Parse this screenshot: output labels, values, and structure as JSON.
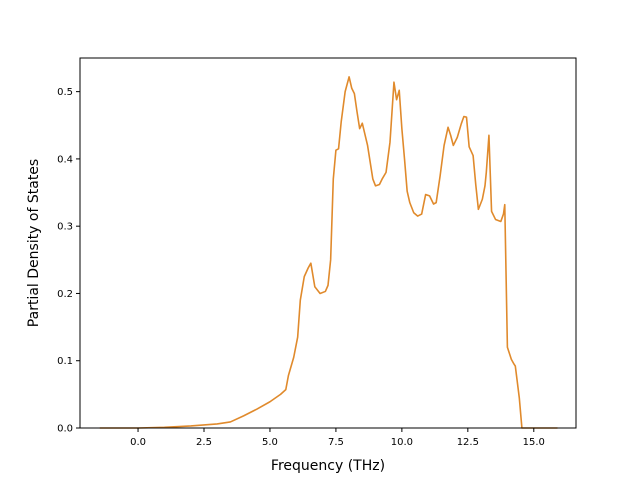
{
  "chart_data": {
    "type": "line",
    "title": "",
    "xlabel": "Frequency (THz)",
    "ylabel": "Partial Density of States",
    "xlim": [
      -2.2,
      16.6
    ],
    "ylim": [
      0.0,
      0.55
    ],
    "xticks": [
      0.0,
      2.5,
      5.0,
      7.5,
      10.0,
      12.5,
      15.0
    ],
    "xtick_labels": [
      "0.0",
      "2.5",
      "5.0",
      "7.5",
      "10.0",
      "12.5",
      "15.0"
    ],
    "yticks": [
      0.0,
      0.1,
      0.2,
      0.3,
      0.4,
      0.5
    ],
    "ytick_labels": [
      "0.0",
      "0.1",
      "0.2",
      "0.3",
      "0.4",
      "0.5"
    ],
    "grid": false,
    "legend": "none",
    "line_color": "#e08a2c",
    "series": [
      {
        "x": [
          -1.45,
          0.0,
          1.0,
          2.0,
          3.0,
          3.5,
          4.0,
          4.5,
          5.0,
          5.4,
          5.6,
          5.7,
          5.9,
          6.05,
          6.15,
          6.3,
          6.45,
          6.55,
          6.7,
          6.9,
          7.1,
          7.2,
          7.3,
          7.35,
          7.4,
          7.5,
          7.6,
          7.7,
          7.85,
          8.0,
          8.1,
          8.2,
          8.3,
          8.4,
          8.5,
          8.7,
          8.9,
          9.0,
          9.15,
          9.25,
          9.4,
          9.55,
          9.7,
          9.8,
          9.9,
          10.0,
          10.1,
          10.2,
          10.3,
          10.45,
          10.6,
          10.75,
          10.9,
          11.05,
          11.2,
          11.3,
          11.45,
          11.6,
          11.75,
          11.85,
          11.95,
          12.1,
          12.25,
          12.35,
          12.45,
          12.55,
          12.7,
          12.8,
          12.9,
          13.05,
          13.15,
          13.2,
          13.3,
          13.4,
          13.55,
          13.75,
          13.85,
          13.9,
          14.0,
          14.15,
          14.25,
          14.3,
          14.45,
          14.55,
          15.0,
          15.9
        ],
        "y": [
          0.0,
          0.0,
          0.001,
          0.003,
          0.006,
          0.009,
          0.018,
          0.028,
          0.039,
          0.05,
          0.057,
          0.078,
          0.105,
          0.135,
          0.19,
          0.225,
          0.238,
          0.245,
          0.21,
          0.2,
          0.203,
          0.212,
          0.25,
          0.31,
          0.37,
          0.413,
          0.415,
          0.455,
          0.5,
          0.522,
          0.505,
          0.497,
          0.47,
          0.445,
          0.453,
          0.42,
          0.37,
          0.36,
          0.362,
          0.37,
          0.38,
          0.425,
          0.514,
          0.488,
          0.502,
          0.445,
          0.4,
          0.352,
          0.335,
          0.32,
          0.315,
          0.318,
          0.347,
          0.345,
          0.333,
          0.335,
          0.375,
          0.42,
          0.447,
          0.435,
          0.42,
          0.432,
          0.452,
          0.463,
          0.462,
          0.418,
          0.405,
          0.362,
          0.325,
          0.34,
          0.36,
          0.38,
          0.435,
          0.322,
          0.31,
          0.307,
          0.318,
          0.332,
          0.12,
          0.102,
          0.095,
          0.092,
          0.045,
          0.0,
          0.0,
          0.0
        ]
      }
    ]
  }
}
